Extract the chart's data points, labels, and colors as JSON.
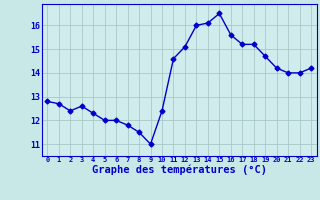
{
  "x": [
    0,
    1,
    2,
    3,
    4,
    5,
    6,
    7,
    8,
    9,
    10,
    11,
    12,
    13,
    14,
    15,
    16,
    17,
    18,
    19,
    20,
    21,
    22,
    23
  ],
  "y": [
    12.8,
    12.7,
    12.4,
    12.6,
    12.3,
    12.0,
    12.0,
    11.8,
    11.5,
    11.0,
    12.4,
    14.6,
    15.1,
    16.0,
    16.1,
    16.5,
    15.6,
    15.2,
    15.2,
    14.7,
    14.2,
    14.0,
    14.0,
    14.2
  ],
  "line_color": "#0000cc",
  "marker": "D",
  "markersize": 2.5,
  "linewidth": 1.0,
  "bg_color": "#c8e8e8",
  "plot_bg_color": "#d0ecec",
  "grid_color": "#a8c8c8",
  "xlabel": "Graphe des températures (°C)",
  "xlabel_color": "#0000cc",
  "ylabel_ticks": [
    11,
    12,
    13,
    14,
    15,
    16
  ],
  "ylim": [
    10.5,
    16.9
  ],
  "xlim": [
    -0.5,
    23.5
  ],
  "tick_color": "#0000cc",
  "xtick_labels": [
    "0",
    "1",
    "2",
    "3",
    "4",
    "5",
    "6",
    "7",
    "8",
    "9",
    "10",
    "11",
    "12",
    "13",
    "14",
    "15",
    "16",
    "17",
    "18",
    "19",
    "20",
    "21",
    "22",
    "23"
  ]
}
